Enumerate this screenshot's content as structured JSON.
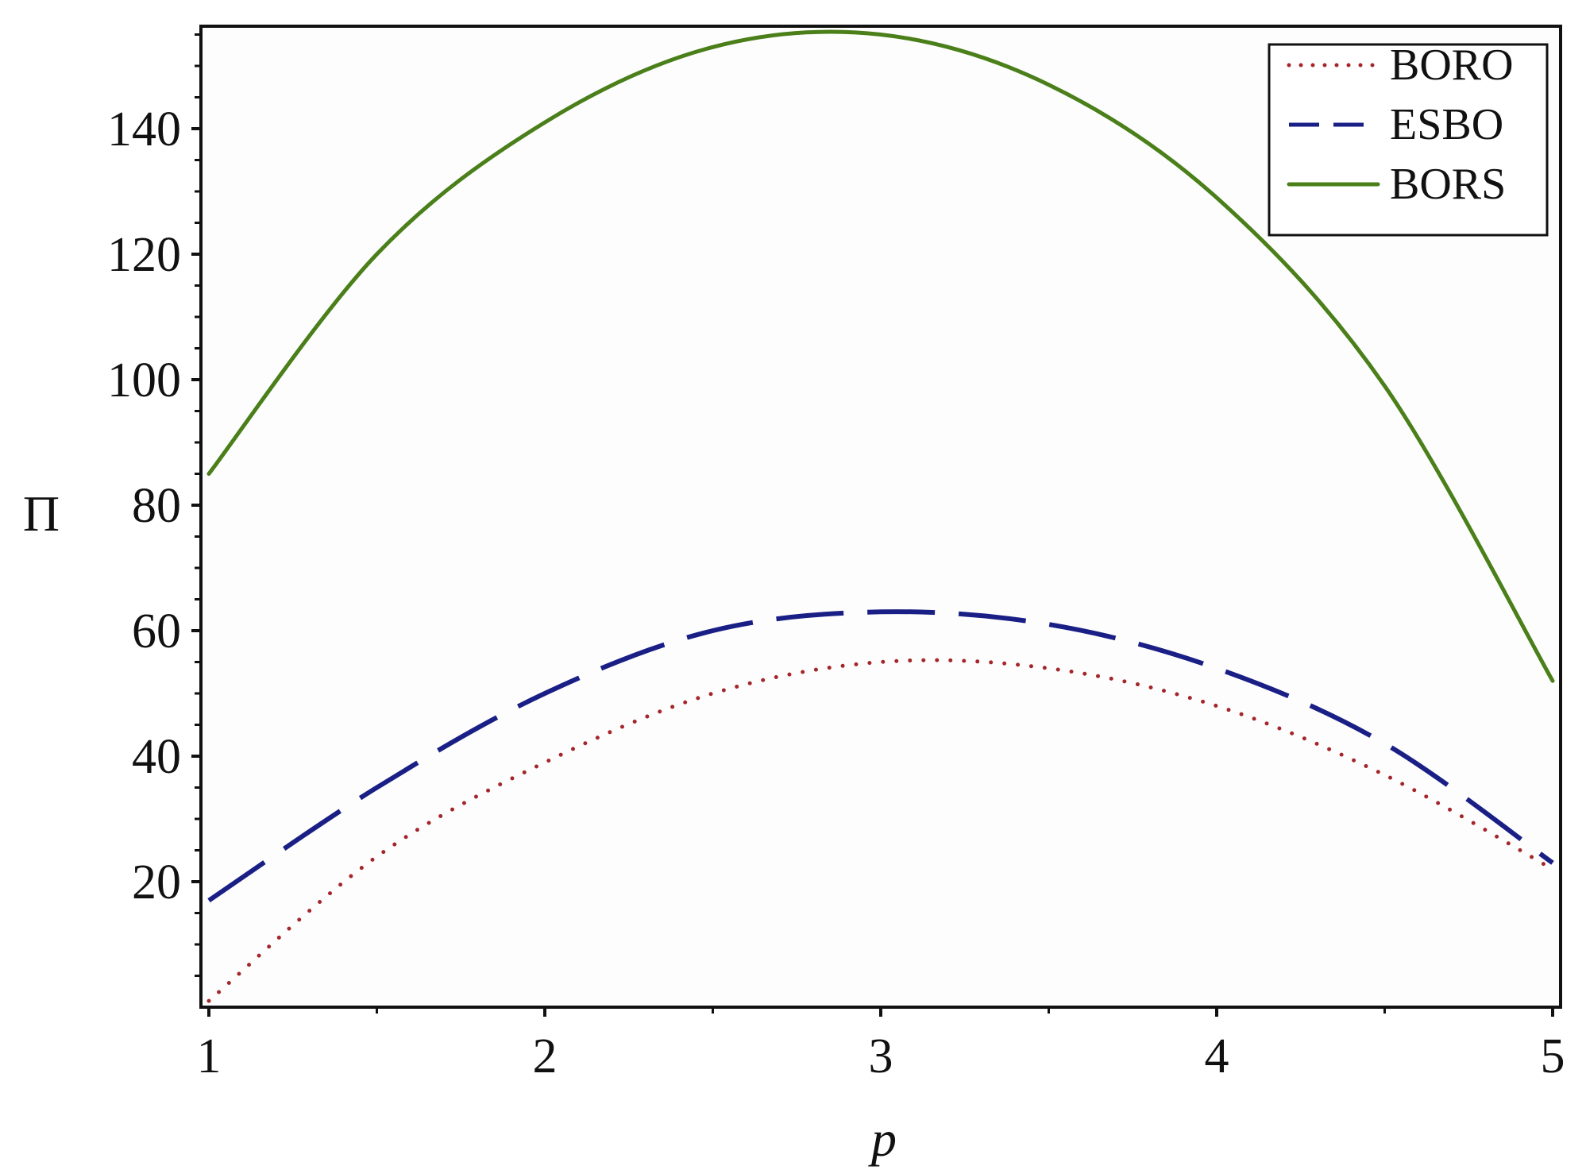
{
  "chart_data": {
    "type": "line",
    "title": "",
    "xlabel": "p",
    "ylabel": "Π",
    "xlim": [
      1,
      5
    ],
    "ylim": [
      0,
      156
    ],
    "xticks": [
      1,
      2,
      3,
      4,
      5
    ],
    "yticks": [
      20,
      40,
      60,
      80,
      100,
      120,
      140
    ],
    "grid": false,
    "legend_position": "top-right",
    "x": [
      1,
      1.5,
      2,
      2.5,
      3,
      3.5,
      4,
      4.5,
      5
    ],
    "series": [
      {
        "name": "BORO",
        "style": "dotted",
        "color": "#a3262a",
        "values": [
          1,
          24,
          39,
          50,
          55,
          54,
          48,
          37,
          22
        ]
      },
      {
        "name": "ESBO",
        "style": "dashed",
        "color": "#1a1f86",
        "values": [
          17,
          35,
          50,
          60,
          63,
          61,
          54,
          42,
          23
        ]
      },
      {
        "name": "BORS",
        "style": "solid",
        "color": "#4a7f1a",
        "values": [
          85,
          120,
          141,
          153,
          155,
          147,
          129,
          99,
          52
        ]
      }
    ]
  }
}
